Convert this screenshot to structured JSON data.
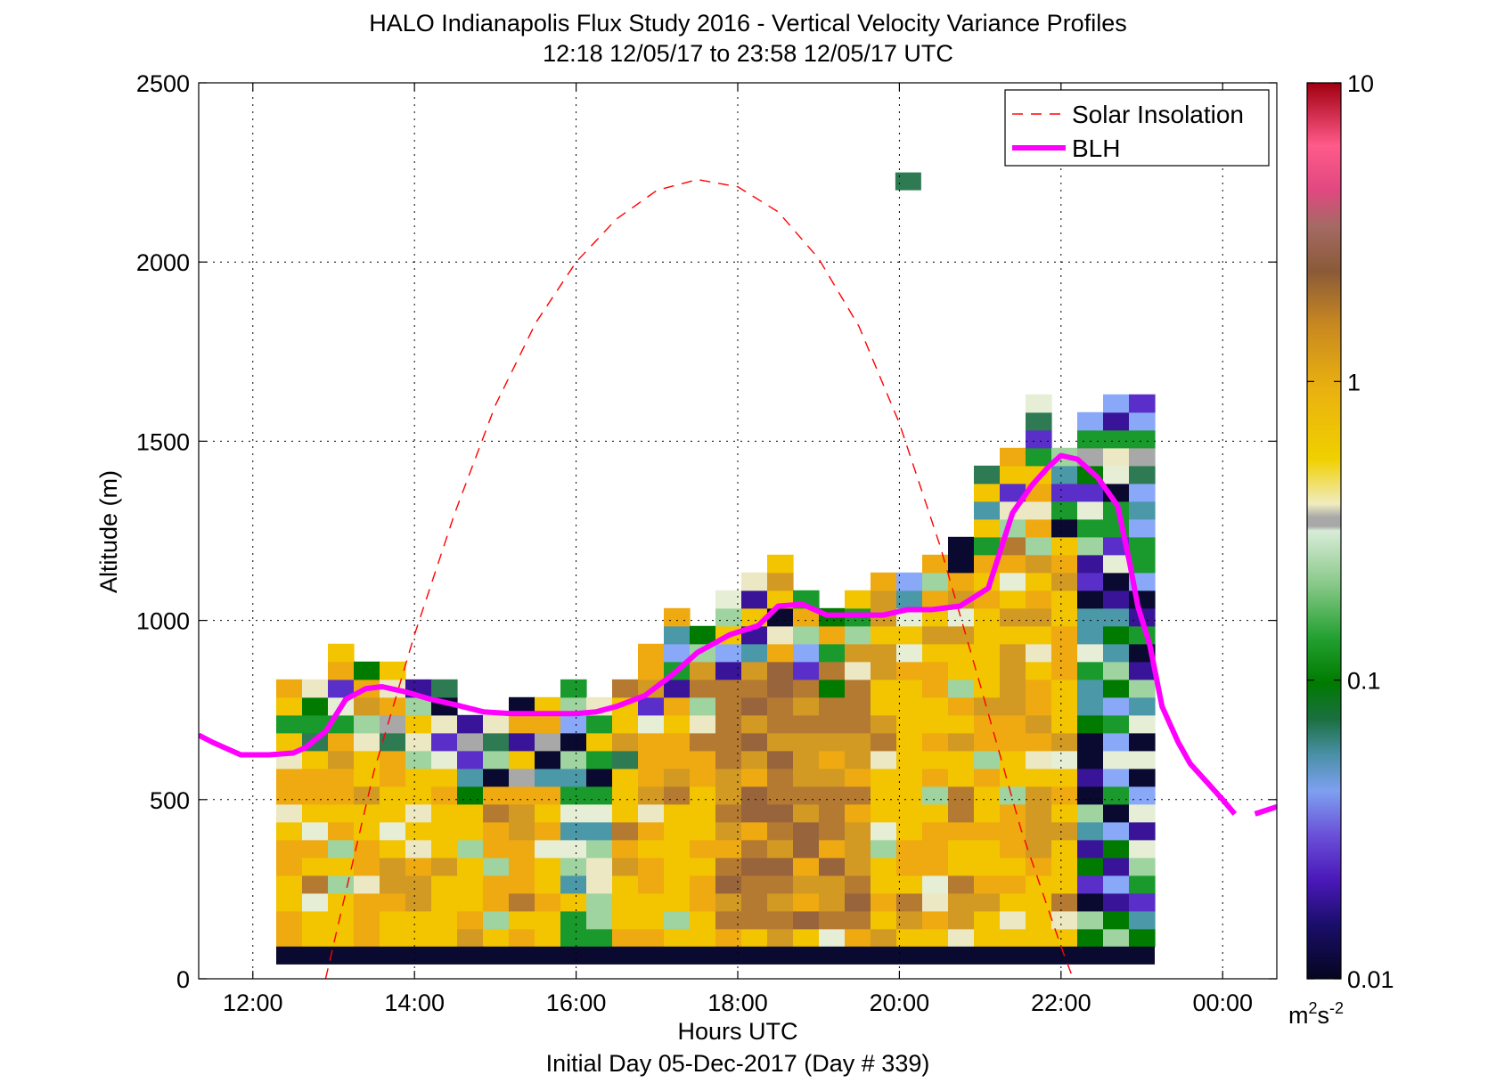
{
  "title_line1": "HALO Indianapolis Flux Study 2016 - Vertical Velocity Variance Profiles",
  "title_line2": "12:18 12/05/17 to 23:58 12/05/17  UTC",
  "chart_data": {
    "type": "heatmap",
    "title": "HALO Indianapolis Flux Study 2016 - Vertical Velocity Variance Profiles",
    "subtitle": "12:18 12/05/17 to 23:58 12/05/17  UTC",
    "xlabel": "Hours UTC",
    "xlabel2": "Initial Day 05-Dec-2017 (Day # 339)",
    "ylabel": "Altitude (m)",
    "xlim": [
      11.33,
      24.67
    ],
    "ylim": [
      0,
      2500
    ],
    "x_ticks": [
      12,
      14,
      16,
      18,
      20,
      22,
      24
    ],
    "x_tick_labels": [
      "12:00",
      "14:00",
      "16:00",
      "18:00",
      "20:00",
      "22:00",
      "00:00"
    ],
    "y_ticks": [
      0,
      500,
      1000,
      1500,
      2000,
      2500
    ],
    "y_tick_labels": [
      "0",
      "500",
      "1000",
      "1500",
      "2000",
      "2500"
    ],
    "grid": true,
    "legend_position": "top-right",
    "colorbar": {
      "scale": "log",
      "range": [
        0.01,
        10
      ],
      "ticks": [
        0.01,
        0.1,
        1,
        10
      ],
      "tick_labels": [
        "0.01",
        "0.1",
        "1",
        "10"
      ],
      "unit_base": "m",
      "unit_sup1": "2",
      "unit_mid": "s",
      "unit_sup2": "-2"
    },
    "colors": {
      "blh": "#ff00ff",
      "solar": "#ff0000",
      "grid": "#000000"
    },
    "series": [
      {
        "name": "Solar Insolation",
        "style": "dashed",
        "x": [
          12.9,
          13.5,
          14.0,
          14.5,
          15.0,
          15.5,
          16.0,
          16.5,
          17.0,
          17.5,
          18.0,
          18.5,
          19.0,
          19.5,
          20.0,
          20.5,
          21.0,
          21.5,
          22.0,
          22.15
        ],
        "y": [
          0,
          580,
          960,
          1300,
          1600,
          1830,
          2000,
          2120,
          2200,
          2230,
          2210,
          2140,
          2010,
          1820,
          1550,
          1210,
          820,
          420,
          90,
          0
        ]
      },
      {
        "name": "BLH",
        "style": "solid",
        "segments": [
          {
            "x": [
              11.33,
              11.5,
              11.85,
              12.2,
              12.5,
              12.65,
              12.9,
              13.15,
              13.4,
              13.6,
              13.9,
              14.2,
              14.5,
              14.85,
              15.2,
              15.6,
              16.0,
              16.25,
              16.5,
              16.85,
              17.2,
              17.5,
              17.9,
              18.25,
              18.5,
              18.8,
              19.1,
              19.5,
              19.8,
              20.1,
              20.4,
              20.75,
              21.1,
              21.4,
              21.65,
              21.85,
              22.0,
              22.2,
              22.45,
              22.7,
              22.85,
              22.95,
              23.1,
              23.25,
              23.45,
              23.6,
              23.8,
              24.0,
              24.15
            ],
            "y": [
              680,
              660,
              625,
              625,
              630,
              645,
              690,
              780,
              810,
              815,
              800,
              780,
              765,
              745,
              740,
              740,
              740,
              745,
              760,
              790,
              850,
              910,
              960,
              985,
              1040,
              1045,
              1015,
              1015,
              1015,
              1030,
              1030,
              1040,
              1090,
              1300,
              1380,
              1430,
              1460,
              1450,
              1400,
              1320,
              1160,
              1040,
              930,
              760,
              660,
              600,
              550,
              500,
              460
            ]
          },
          {
            "x": [
              24.4,
              24.67
            ],
            "y": [
              460,
              480
            ]
          }
        ]
      }
    ]
  }
}
